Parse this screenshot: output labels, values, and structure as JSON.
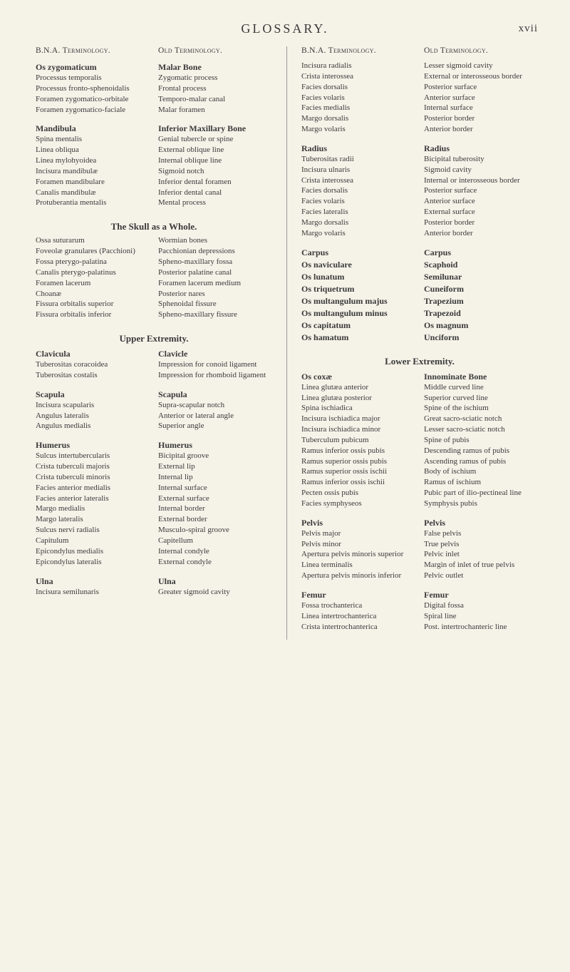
{
  "page": {
    "title": "GLOSSARY.",
    "number": "xvii",
    "background_color": "#f5f2e8",
    "text_color": "#3a3a3a",
    "font_family": "Georgia, 'Times New Roman', serif"
  },
  "headers": {
    "bna": "B.N.A. Terminology.",
    "old": "Old Terminology."
  },
  "left_column": {
    "blocks": [
      {
        "bna_head": "Os zygomaticum",
        "old_head": "Malar Bone",
        "rows": [
          {
            "bna": "Processus temporalis",
            "old": "Zygomatic process"
          },
          {
            "bna": "Processus fronto-sphenoidalis",
            "old": "Frontal process"
          },
          {
            "bna": "Foramen zygomatico-orbitale",
            "old": "Temporo-malar canal"
          },
          {
            "bna": "Foramen zygomatico-faciale",
            "old": "Malar foramen"
          }
        ]
      },
      {
        "bna_head": "Mandibula",
        "old_head": "Inferior Maxillary Bone",
        "rows": [
          {
            "bna": "Spina mentalis",
            "old": "Genial tubercle or spine"
          },
          {
            "bna": "Linea obliqua",
            "old": "External oblique line"
          },
          {
            "bna": "Linea mylohyoidea",
            "old": "Internal oblique line"
          },
          {
            "bna": "Incisura mandibulæ",
            "old": "Sigmoid notch"
          },
          {
            "bna": "Foramen mandibulare",
            "old": "Inferior dental foramen"
          },
          {
            "bna": "Canalis mandibulæ",
            "old": "Inferior dental canal"
          },
          {
            "bna": "Protuberantia mentalis",
            "old": "Mental process"
          }
        ]
      }
    ],
    "sections": [
      {
        "title": "The Skull as a Whole.",
        "rows": [
          {
            "bna": "Ossa suturarum",
            "old": "Wormian bones"
          },
          {
            "bna": "Foveolæ granulares (Pacchioni)",
            "old": "Pacchionian depressions"
          },
          {
            "bna": "Fossa pterygo-palatina",
            "old": "Spheno-maxillary fossa"
          },
          {
            "bna": "Canalis pterygo-palatinus",
            "old": "Posterior palatine canal"
          },
          {
            "bna": "Foramen lacerum",
            "old": "Foramen lacerum medium"
          },
          {
            "bna": "Choanæ",
            "old": "Posterior nares"
          },
          {
            "bna": "Fissura orbitalis superior",
            "old": "Sphenoidal fissure"
          },
          {
            "bna": "Fissura orbitalis inferior",
            "old": "Spheno-maxillary fissure"
          }
        ]
      },
      {
        "title": "Upper Extremity.",
        "blocks": [
          {
            "bna_head": "Clavicula",
            "old_head": "Clavicle",
            "rows": [
              {
                "bna": "Tuberositas coracoidea",
                "old": "Impression for conoid ligament"
              },
              {
                "bna": "Tuberositas costalis",
                "old": "Impression for rhomboid ligament"
              }
            ]
          },
          {
            "bna_head": "Scapula",
            "old_head": "Scapula",
            "rows": [
              {
                "bna": "Incisura scapularis",
                "old": "Supra-scapular notch"
              },
              {
                "bna": "Angulus lateralis",
                "old": "Anterior or lateral angle"
              },
              {
                "bna": "Angulus medialis",
                "old": "Superior angle"
              }
            ]
          },
          {
            "bna_head": "Humerus",
            "old_head": "Humerus",
            "rows": [
              {
                "bna": "Sulcus intertubercularis",
                "old": "Bicipital groove"
              },
              {
                "bna": "Crista tuberculi majoris",
                "old": "External lip"
              },
              {
                "bna": "Crista tuberculi minoris",
                "old": "Internal lip"
              },
              {
                "bna": "Facies anterior medialis",
                "old": "Internal surface"
              },
              {
                "bna": "Facies anterior lateralis",
                "old": "External surface"
              },
              {
                "bna": "Margo medialis",
                "old": "Internal border"
              },
              {
                "bna": "Margo lateralis",
                "old": "External border"
              },
              {
                "bna": "Sulcus nervi radialis",
                "old": "Musculo-spiral groove"
              },
              {
                "bna": "Capitulum",
                "old": "Capitellum"
              },
              {
                "bna": "Epicondylus medialis",
                "old": "Internal condyle"
              },
              {
                "bna": "Epicondylus lateralis",
                "old": "External condyle"
              }
            ]
          },
          {
            "bna_head": "Ulna",
            "old_head": "Ulna",
            "rows": [
              {
                "bna": "Incisura semilunaris",
                "old": "Greater sigmoid cavity"
              }
            ]
          }
        ]
      }
    ]
  },
  "right_column": {
    "blocks": [
      {
        "rows": [
          {
            "bna": "Incisura radialis",
            "old": "Lesser sigmoid cavity"
          },
          {
            "bna": "Crista interossea",
            "old": "External or interosseous border"
          },
          {
            "bna": "Facies dorsalis",
            "old": "Posterior surface"
          },
          {
            "bna": "Facies volaris",
            "old": "Anterior surface"
          },
          {
            "bna": "Facies medialis",
            "old": "Internal surface"
          },
          {
            "bna": "Margo dorsalis",
            "old": "Posterior border"
          },
          {
            "bna": "Margo volaris",
            "old": "Anterior border"
          }
        ]
      },
      {
        "bna_head": "Radius",
        "old_head": "Radius",
        "rows": [
          {
            "bna": "Tuberositas radii",
            "old": "Bicipital tuberosity"
          },
          {
            "bna": "Incisura ulnaris",
            "old": "Sigmoid cavity"
          },
          {
            "bna": "Crista interossea",
            "old": "Internal or interosseous border"
          },
          {
            "bna": "Facies dorsalis",
            "old": "Posterior surface"
          },
          {
            "bna": "Facies volaris",
            "old": "Anterior surface"
          },
          {
            "bna": "Facies lateralis",
            "old": "External surface"
          },
          {
            "bna": "Margo dorsalis",
            "old": "Posterior border"
          },
          {
            "bna": "Margo volaris",
            "old": "Anterior border"
          }
        ]
      },
      {
        "bna_head": "Carpus",
        "old_head": "Carpus",
        "rows": [
          {
            "bna": "Os naviculare",
            "old": "Scaphoid"
          },
          {
            "bna": "Os lunatum",
            "old": "Semilunar"
          },
          {
            "bna": "Os triquetrum",
            "old": "Cuneiform"
          },
          {
            "bna": "Os multangulum majus",
            "old": "Trapezium"
          },
          {
            "bna": "Os multangulum minus",
            "old": "Trapezoid"
          },
          {
            "bna": "Os capitatum",
            "old": "Os magnum"
          },
          {
            "bna": "Os hamatum",
            "old": "Unciform"
          }
        ],
        "bold_rows": true
      }
    ],
    "sections": [
      {
        "title": "Lower Extremity.",
        "blocks": [
          {
            "bna_head": "Os coxæ",
            "old_head": "Innominate Bone",
            "rows": [
              {
                "bna": "Linea glutæa anterior",
                "old": "Middle curved line"
              },
              {
                "bna": "Linea glutæa posterior",
                "old": "Superior curved line"
              },
              {
                "bna": "Spina ischiadica",
                "old": "Spine of the ischium"
              },
              {
                "bna": "Incisura ischiadica major",
                "old": "Great sacro-sciatic notch"
              },
              {
                "bna": "Incisura ischiadica minor",
                "old": "Lesser sacro-sciatic notch"
              },
              {
                "bna": "Tuberculum pubicum",
                "old": "Spine of pubis"
              },
              {
                "bna": "Ramus inferior ossis pubis",
                "old": "Descending ramus of pubis"
              },
              {
                "bna": "Ramus superior ossis pubis",
                "old": "Ascending ramus of pubis"
              },
              {
                "bna": "Ramus superior ossis ischii",
                "old": "Body of ischium"
              },
              {
                "bna": "Ramus inferior ossis ischii",
                "old": "Ramus of ischium"
              },
              {
                "bna": "Pecten ossis pubis",
                "old": "Pubic part of ilio-pectineal line"
              },
              {
                "bna": "Facies symphyseos",
                "old": "Symphysis pubis"
              }
            ]
          },
          {
            "bna_head": "Pelvis",
            "old_head": "Pelvis",
            "rows": [
              {
                "bna": "Pelvis major",
                "old": "False pelvis"
              },
              {
                "bna": "Pelvis minor",
                "old": "True pelvis"
              },
              {
                "bna": "Apertura pelvis minoris superior",
                "old": "Pelvic inlet"
              },
              {
                "bna": "Linea terminalis",
                "old": "Margin of inlet of true pelvis"
              },
              {
                "bna": "Apertura pelvis minoris inferior",
                "old": "Pelvic outlet"
              }
            ]
          },
          {
            "bna_head": "Femur",
            "old_head": "Femur",
            "rows": [
              {
                "bna": "Fossa trochanterica",
                "old": "Digital fossa"
              },
              {
                "bna": "Linea intertrochanterica",
                "old": "Spiral line"
              },
              {
                "bna": "Crista intertrochanterica",
                "old": "Post. intertrochanteric line"
              }
            ]
          }
        ]
      }
    ]
  }
}
